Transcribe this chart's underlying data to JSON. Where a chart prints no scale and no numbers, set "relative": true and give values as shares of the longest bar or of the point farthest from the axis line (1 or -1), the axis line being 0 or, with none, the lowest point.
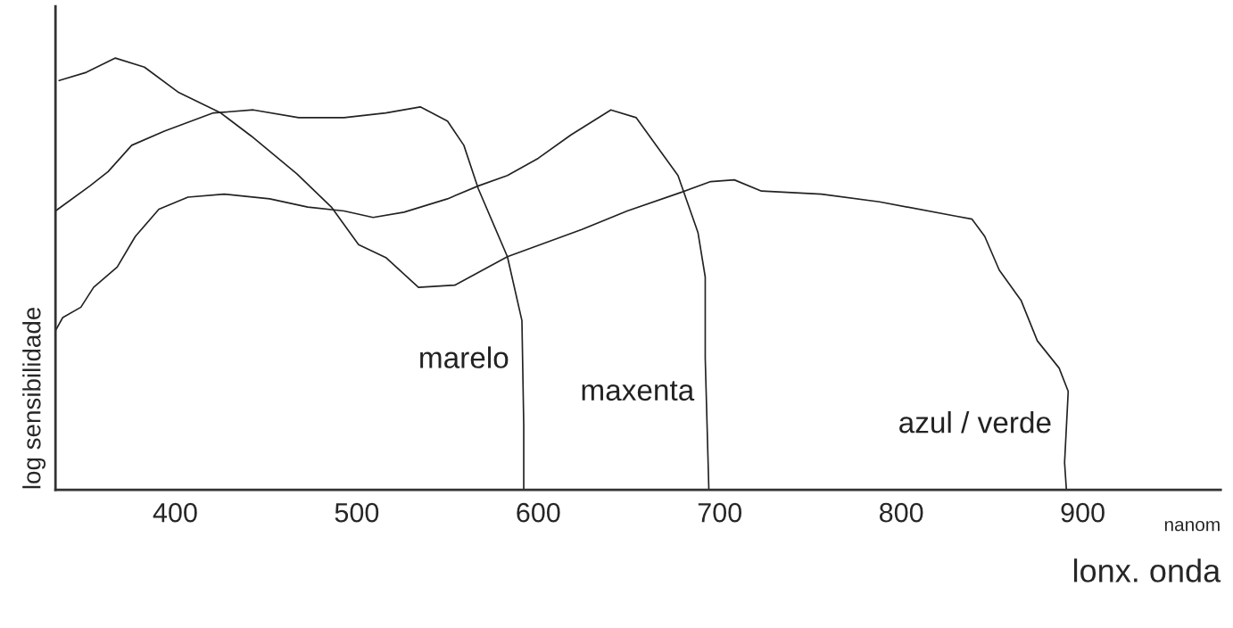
{
  "chart_data": {
    "type": "line",
    "relative": true,
    "xlabel": "lonx. onda",
    "ylabel": "log sensibilidade",
    "annotations": [
      "nanom"
    ],
    "xlim": [
      334,
      976
    ],
    "xticks": [
      400,
      500,
      600,
      700,
      800,
      900
    ],
    "grid": false,
    "legend": false,
    "marker": "none",
    "line_style": "solid",
    "series": [
      {
        "name": "marelo",
        "color": "#222222",
        "x": [
          334,
          353,
          363,
          376,
          394,
          421,
          443,
          468,
          493,
          516,
          535,
          550,
          559,
          567,
          583,
          591,
          592,
          592
        ],
        "values": [
          0.646,
          0.704,
          0.737,
          0.798,
          0.831,
          0.873,
          0.88,
          0.862,
          0.862,
          0.873,
          0.887,
          0.854,
          0.798,
          0.697,
          0.54,
          0.392,
          0.15,
          0
        ]
      },
      {
        "name": "maxenta",
        "color": "#222222",
        "x": [
          334,
          338,
          348,
          355,
          368,
          378,
          391,
          407,
          427,
          452,
          473,
          493,
          509,
          526,
          550,
          567,
          583,
          600,
          618,
          640,
          654,
          665,
          677,
          688,
          692,
          692,
          694
        ],
        "values": [
          0.369,
          0.399,
          0.423,
          0.469,
          0.516,
          0.587,
          0.65,
          0.678,
          0.685,
          0.674,
          0.655,
          0.646,
          0.631,
          0.643,
          0.674,
          0.704,
          0.728,
          0.768,
          0.822,
          0.88,
          0.862,
          0.798,
          0.728,
          0.596,
          0.493,
          0.305,
          0
        ]
      },
      {
        "name": "azul / verde",
        "color": "#222222",
        "x": [
          336,
          351,
          367,
          383,
          402,
          425,
          442,
          467,
          486,
          501,
          516,
          534,
          554,
          583,
          624,
          649,
          678,
          695,
          708,
          723,
          756,
          788,
          830,
          839,
          846,
          854,
          866,
          875,
          887,
          892,
          890,
          891
        ],
        "values": [
          0.948,
          0.967,
          1.0,
          0.979,
          0.92,
          0.873,
          0.819,
          0.732,
          0.655,
          0.568,
          0.538,
          0.469,
          0.474,
          0.54,
          0.603,
          0.646,
          0.688,
          0.714,
          0.718,
          0.692,
          0.685,
          0.667,
          0.634,
          0.627,
          0.587,
          0.509,
          0.439,
          0.345,
          0.282,
          0.228,
          0.063,
          0
        ]
      }
    ]
  }
}
